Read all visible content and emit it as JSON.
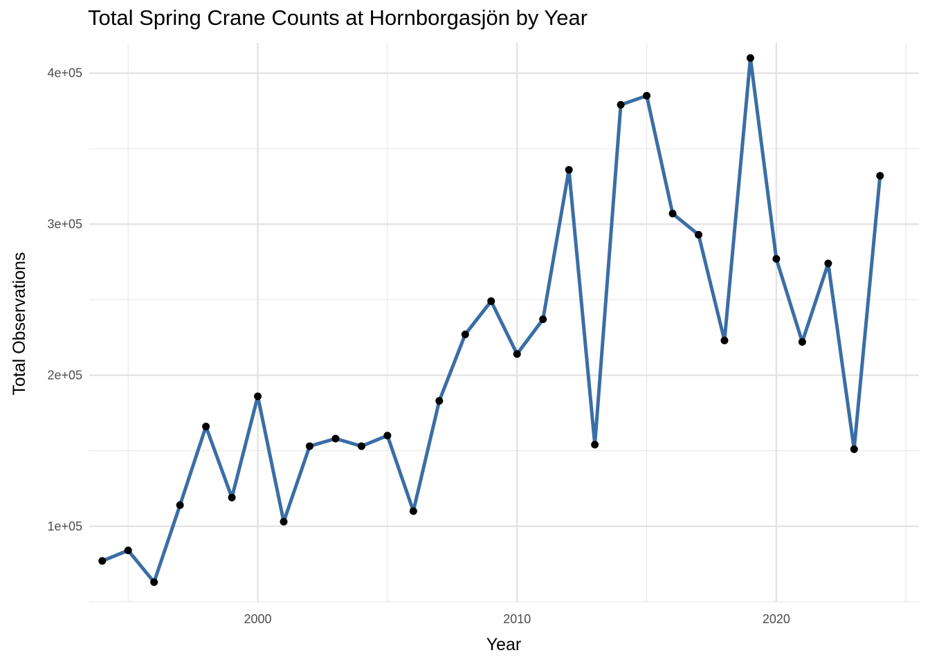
{
  "chart_data": {
    "type": "line",
    "title": "Total Spring Crane Counts at Hornborgasjön by Year",
    "xlabel": "Year",
    "ylabel": "Total Observations",
    "xlim": [
      1993.5,
      2025.5
    ],
    "ylim": [
      50000,
      420000
    ],
    "x_ticks": [
      {
        "value": 2000,
        "label": "2000"
      },
      {
        "value": 2010,
        "label": "2010"
      },
      {
        "value": 2020,
        "label": "2020"
      }
    ],
    "x_minor": [
      1995,
      2005,
      2015,
      2025
    ],
    "y_ticks": [
      {
        "value": 100000,
        "label": "1e+05"
      },
      {
        "value": 200000,
        "label": "2e+05"
      },
      {
        "value": 300000,
        "label": "3e+05"
      },
      {
        "value": 400000,
        "label": "4e+05"
      }
    ],
    "y_minor": [
      50000,
      150000,
      250000,
      350000
    ],
    "grid": true,
    "line_color": "#3a6ea5",
    "point_color": "#000000",
    "x": [
      1994,
      1995,
      1996,
      1997,
      1998,
      1999,
      2000,
      2001,
      2002,
      2003,
      2004,
      2005,
      2006,
      2007,
      2008,
      2009,
      2010,
      2011,
      2012,
      2013,
      2014,
      2015,
      2016,
      2017,
      2018,
      2019,
      2020,
      2021,
      2022,
      2023,
      2024
    ],
    "y": [
      77000,
      84000,
      63000,
      114000,
      166000,
      119000,
      186000,
      103000,
      153000,
      158000,
      153000,
      160000,
      110000,
      183000,
      227000,
      249000,
      214000,
      237000,
      336000,
      154000,
      379000,
      385000,
      307000,
      293000,
      223000,
      410000,
      277000,
      222000,
      274000,
      151000,
      332000
    ]
  }
}
